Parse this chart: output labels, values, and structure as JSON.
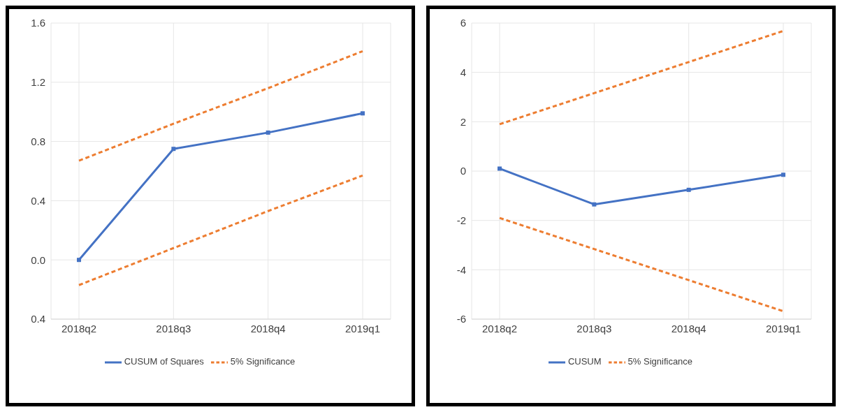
{
  "chart_data": [
    {
      "type": "line",
      "categories": [
        "2018q2",
        "2018q3",
        "2018q4",
        "2019q1"
      ],
      "ylim": [
        -0.4,
        1.6
      ],
      "yticks": [
        {
          "value": -0.4,
          "label": "0.4"
        },
        {
          "value": 0,
          "label": "0.0"
        },
        0.4,
        0.8,
        1.2,
        1.6
      ],
      "grid": true,
      "legend": "bottom",
      "series": [
        {
          "name": "CUSUM of Squares",
          "color": "#4472c4",
          "values": [
            0,
            0.75,
            0.86,
            0.99
          ],
          "marker": "square",
          "line_style": "solid"
        },
        {
          "name": "5% Significance",
          "color": "#ed7d31",
          "values": [
            0.67,
            0.92,
            1.16,
            1.41
          ],
          "marker": "none",
          "line_style": "dashed"
        },
        {
          "color": "#ed7d31",
          "values": [
            -0.17,
            0.08,
            0.33,
            0.57
          ],
          "marker": "none",
          "line_style": "dashed"
        }
      ]
    },
    {
      "type": "line",
      "categories": [
        "2018q2",
        "2018q3",
        "2018q4",
        "2019q1"
      ],
      "ylim": [
        -6,
        6
      ],
      "yticks": [
        -6,
        -4,
        -2,
        0,
        2,
        4,
        6
      ],
      "grid": true,
      "legend": "bottom",
      "series": [
        {
          "name": "CUSUM",
          "color": "#4472c4",
          "values": [
            0.1,
            -1.35,
            -0.76,
            -0.15
          ],
          "marker": "square",
          "line_style": "solid"
        },
        {
          "name": "5% Significance",
          "color": "#ed7d31",
          "values": [
            1.9,
            3.16,
            4.42,
            5.68
          ],
          "marker": "none",
          "line_style": "dashed"
        },
        {
          "color": "#ed7d31",
          "values": [
            -1.9,
            -3.16,
            -4.42,
            -5.68
          ],
          "marker": "none",
          "line_style": "dashed"
        }
      ]
    }
  ]
}
